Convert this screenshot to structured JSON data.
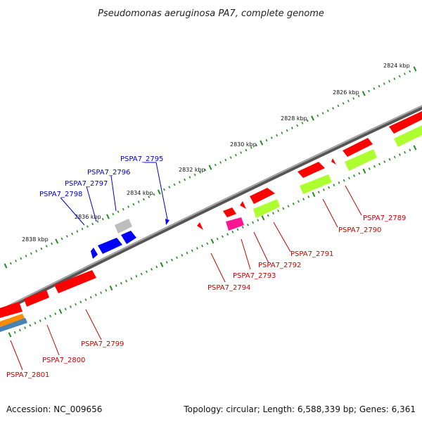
{
  "title": "Pseudomonas aeruginosa PA7, complete genome",
  "footer": {
    "accession": "Accession: NC_009656",
    "summary": "Topology: circular; Length: 6,588,339 bp; Genes: 6,361"
  },
  "colors": {
    "backbone": "#7a7a7a",
    "tick": "#1e8c1e",
    "label_forward": "#0000cc",
    "label_reverse": "#cc0000",
    "red": "#ff0000",
    "blue": "#0000ff",
    "gray": "#bdbdbd",
    "lime": "#adff2f",
    "magenta": "#ff1493",
    "orange": "#ff8c00",
    "steelblue": "#4682b4"
  },
  "scale_labels": [
    {
      "text": "2824 kbp"
    },
    {
      "text": "2826 kbp"
    },
    {
      "text": "2828 kbp"
    },
    {
      "text": "2830 kbp"
    },
    {
      "text": "2832 kbp"
    },
    {
      "text": "2834 kbp"
    },
    {
      "text": "2836 kbp"
    },
    {
      "text": "2838 kbp"
    }
  ],
  "genes_forward": [
    "PSPA7_2795",
    "PSPA7_2796",
    "PSPA7_2797",
    "PSPA7_2798"
  ],
  "genes_reverse": [
    "PSPA7_2789",
    "PSPA7_2790",
    "PSPA7_2791",
    "PSPA7_2792",
    "PSPA7_2793",
    "PSPA7_2794",
    "PSPA7_2799",
    "PSPA7_2800",
    "PSPA7_2801"
  ]
}
